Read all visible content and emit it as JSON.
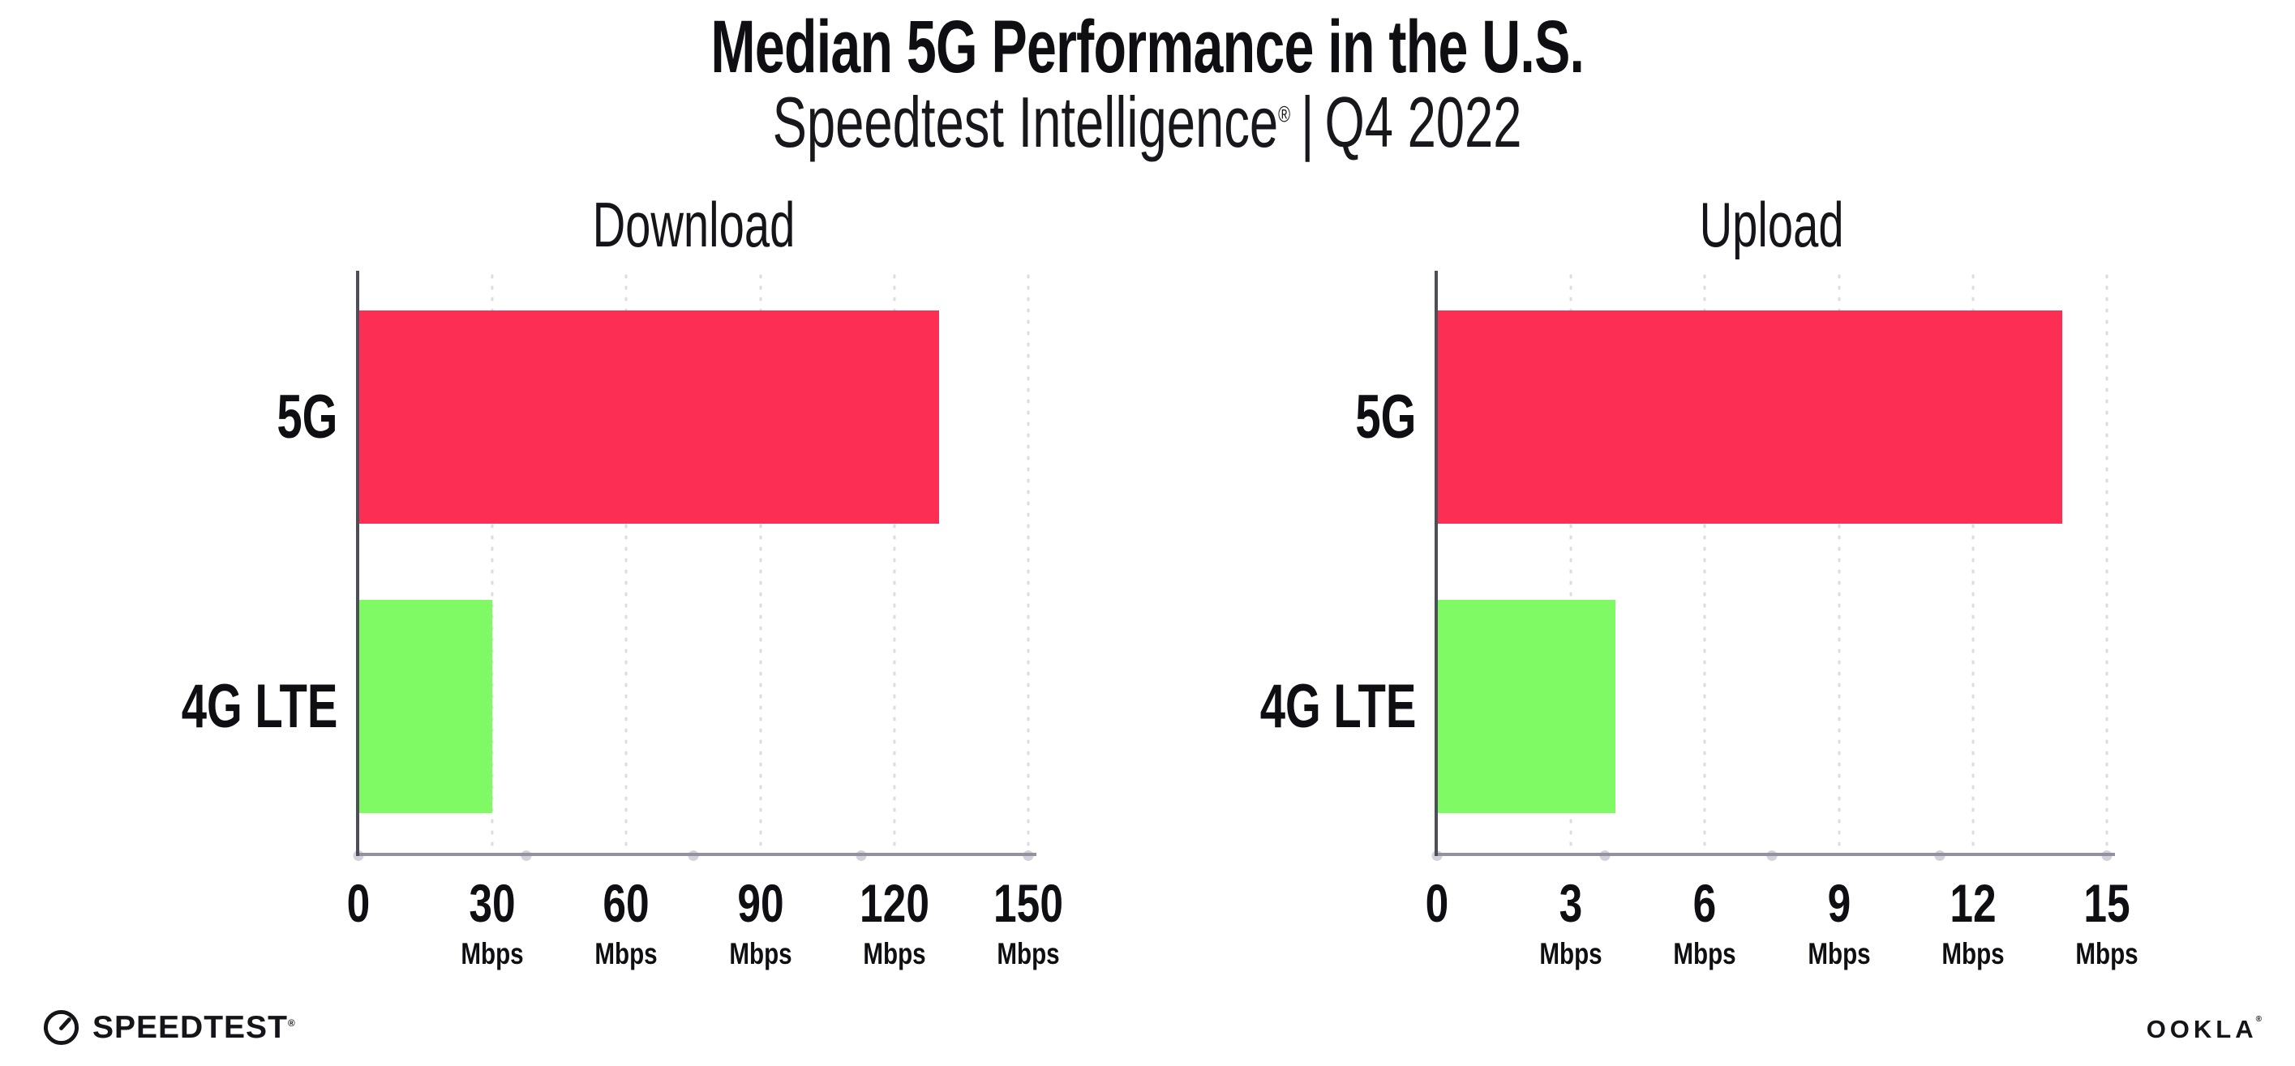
{
  "header": {
    "title": "Median 5G Performance in the U.S.",
    "subtitle_brand": "Speedtest Intelligence",
    "subtitle_reg": "®",
    "subtitle_separator": "|",
    "subtitle_period": "Q4 2022"
  },
  "chart_data": [
    {
      "type": "bar",
      "orientation": "horizontal",
      "title": "Download",
      "categories": [
        "5G",
        "4G LTE"
      ],
      "values": [
        130,
        30
      ],
      "unit": "Mbps",
      "xlim": [
        0,
        150
      ],
      "xticks": [
        0,
        30,
        60,
        90,
        120,
        150
      ],
      "grid": "dotted-vertical",
      "legend": "none",
      "bar_colors": [
        "#FC2E53",
        "#80FA64"
      ]
    },
    {
      "type": "bar",
      "orientation": "horizontal",
      "title": "Upload",
      "categories": [
        "5G",
        "4G LTE"
      ],
      "values": [
        14,
        4
      ],
      "unit": "Mbps",
      "xlim": [
        0,
        15
      ],
      "xticks": [
        0,
        3,
        6,
        9,
        12,
        15
      ],
      "grid": "dotted-vertical",
      "legend": "none",
      "bar_colors": [
        "#FC2E53",
        "#80FA64"
      ]
    }
  ],
  "footer": {
    "speedtest_logo_text": "SPEEDTEST",
    "speedtest_reg": "®",
    "ookla_logo_text": "OOKLA",
    "ookla_reg": "®"
  },
  "colors": {
    "bar_5g": "#FC2E53",
    "bar_4g": "#80FA64",
    "y_axis": "#4E4E58",
    "x_axis": "#92929C",
    "gridline_dot": "#DCDCE6",
    "axis_tick_dot": "#D3D3DE",
    "text": "#0E0E13"
  }
}
